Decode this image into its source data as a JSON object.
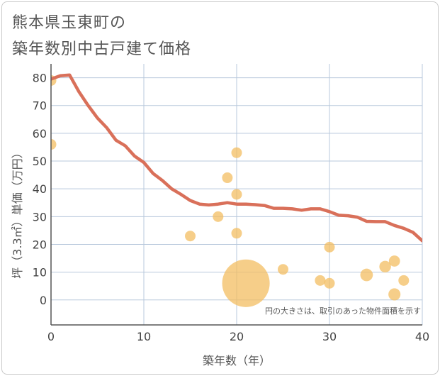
{
  "title": {
    "line1": "熊本県玉東町の",
    "line2": "築年数別中古戸建て価格"
  },
  "note": "円の大きさは、取引のあった物件面積を示す",
  "chart_data": {
    "type": "scatter",
    "title": "熊本県玉東町の築年数別中古戸建て価格",
    "xlabel": "築年数（年）",
    "ylabel": "坪（3.3㎡）単価（万円）",
    "xlim": [
      0,
      40
    ],
    "ylim": [
      -9,
      85
    ],
    "xticks": [
      0,
      10,
      20,
      30,
      40
    ],
    "yticks": [
      0,
      10,
      20,
      30,
      40,
      50,
      60,
      70,
      80
    ],
    "grid": true,
    "colors": {
      "line": "#d9705a",
      "bubble": "#f3be62",
      "grid": "#b8c8dc",
      "axis": "#555555"
    },
    "series": [
      {
        "name": "trend",
        "kind": "line",
        "points": [
          [
            0,
            79.5
          ],
          [
            1,
            80.7
          ],
          [
            2,
            81.0
          ],
          [
            3,
            75.0
          ],
          [
            4,
            70.0
          ],
          [
            5,
            65.5
          ],
          [
            6,
            62.0
          ],
          [
            7,
            57.5
          ],
          [
            8,
            55.5
          ],
          [
            9,
            51.8
          ],
          [
            10,
            49.5
          ],
          [
            11,
            45.5
          ],
          [
            12,
            43.0
          ],
          [
            13,
            40.0
          ],
          [
            14,
            38.0
          ],
          [
            15,
            35.8
          ],
          [
            16,
            34.5
          ],
          [
            17,
            34.2
          ],
          [
            18,
            34.5
          ],
          [
            19,
            35.0
          ],
          [
            20,
            34.5
          ],
          [
            21,
            34.5
          ],
          [
            22,
            34.3
          ],
          [
            23,
            34.0
          ],
          [
            24,
            33.0
          ],
          [
            25,
            33.0
          ],
          [
            26,
            32.8
          ],
          [
            27,
            32.3
          ],
          [
            28,
            32.8
          ],
          [
            29,
            32.8
          ],
          [
            30,
            31.8
          ],
          [
            31,
            30.5
          ],
          [
            32,
            30.3
          ],
          [
            33,
            29.8
          ],
          [
            34,
            28.3
          ],
          [
            35,
            28.2
          ],
          [
            36,
            28.2
          ],
          [
            37,
            26.8
          ],
          [
            38,
            25.8
          ],
          [
            39,
            24.3
          ],
          [
            40,
            21.3
          ]
        ]
      },
      {
        "name": "transactions",
        "kind": "bubble",
        "points": [
          {
            "x": 0,
            "y": 79,
            "size": 1
          },
          {
            "x": 0,
            "y": 56,
            "size": 1
          },
          {
            "x": 15,
            "y": 23,
            "size": 1
          },
          {
            "x": 18,
            "y": 30,
            "size": 1
          },
          {
            "x": 19,
            "y": 44,
            "size": 1
          },
          {
            "x": 20,
            "y": 53,
            "size": 1
          },
          {
            "x": 20,
            "y": 38,
            "size": 1
          },
          {
            "x": 20,
            "y": 24,
            "size": 1
          },
          {
            "x": 21,
            "y": 6,
            "size": 20
          },
          {
            "x": 25,
            "y": 11,
            "size": 1
          },
          {
            "x": 29,
            "y": 7,
            "size": 1
          },
          {
            "x": 30,
            "y": 19,
            "size": 1
          },
          {
            "x": 30,
            "y": 6,
            "size": 1
          },
          {
            "x": 34,
            "y": 9,
            "size": 1.4
          },
          {
            "x": 36,
            "y": 12,
            "size": 1.2
          },
          {
            "x": 37,
            "y": 14,
            "size": 1.1
          },
          {
            "x": 37,
            "y": 2,
            "size": 1.3
          },
          {
            "x": 38,
            "y": 7,
            "size": 1
          }
        ]
      }
    ]
  }
}
